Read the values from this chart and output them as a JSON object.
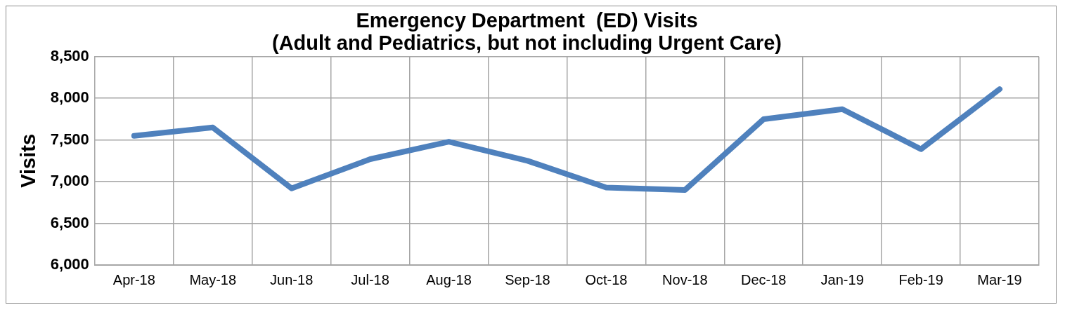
{
  "chart_data": {
    "type": "line",
    "title": [
      "Emergency Department  (ED) Visits",
      "(Adult and Pediatrics, but not including Urgent Care)"
    ],
    "ylabel": "Visits",
    "categories": [
      "Apr-18",
      "May-18",
      "Jun-18",
      "Jul-18",
      "Aug-18",
      "Sep-18",
      "Oct-18",
      "Nov-18",
      "Dec-18",
      "Jan-19",
      "Feb-19",
      "Mar-19"
    ],
    "series": [
      {
        "color": "#4f81bd",
        "values": [
          7550,
          7650,
          6920,
          7270,
          7480,
          7250,
          6930,
          6900,
          7750,
          7870,
          7390,
          8110
        ]
      }
    ],
    "ylim": [
      6000,
      8500
    ],
    "yticks": [
      {
        "value": 6000,
        "label": "6,000"
      },
      {
        "value": 6500,
        "label": "6,500"
      },
      {
        "value": 7000,
        "label": "7,000"
      },
      {
        "value": 7500,
        "label": "7,500"
      },
      {
        "value": 8000,
        "label": "8,000"
      },
      {
        "value": 8500,
        "label": "8,500"
      }
    ],
    "grid": true,
    "marker": "none",
    "line_style": "solid",
    "legend": false
  }
}
